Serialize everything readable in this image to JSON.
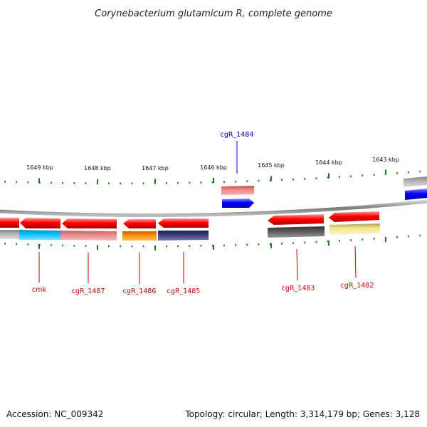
{
  "title": "Corynebacterium glutamicum R, complete genome",
  "footer": {
    "accession": "Accession: NC_009342",
    "topology": "Topology: circular; Length: 3,314,179 bp; Genes: 3,128"
  },
  "scale_labels": [
    "1649 kbp",
    "1648 kbp",
    "1647 kbp",
    "1646 kbp",
    "1645 kbp",
    "1644 kbp",
    "1643 kbp"
  ],
  "gene_labels": {
    "cgR_1484": "cgR_1484",
    "cmk": "cmk",
    "cgR_1487": "cgR_1487",
    "cgR_1486": "cgR_1486",
    "cgR_1485": "cgR_1485",
    "cgR_1483": "cgR_1483",
    "cgR_1482": "cgR_1482"
  },
  "colors": {
    "gene_red": "#ff0000",
    "label_red": "#cc0000",
    "label_blue": "#0000cc",
    "tick_green": "#1e7a1e",
    "backbone": "#8a8a8a",
    "blue_gene": "#0000ff",
    "pink_gene": "#f08080",
    "cyan_gene": "#00bfff",
    "salmon_gene": "#e88888",
    "orange_gene": "#ff8c00",
    "navy_gene": "#3a3a7a",
    "dark_gene": "#555555",
    "khaki_gene": "#f0e68c",
    "gray_gene": "#b0b0b0"
  }
}
